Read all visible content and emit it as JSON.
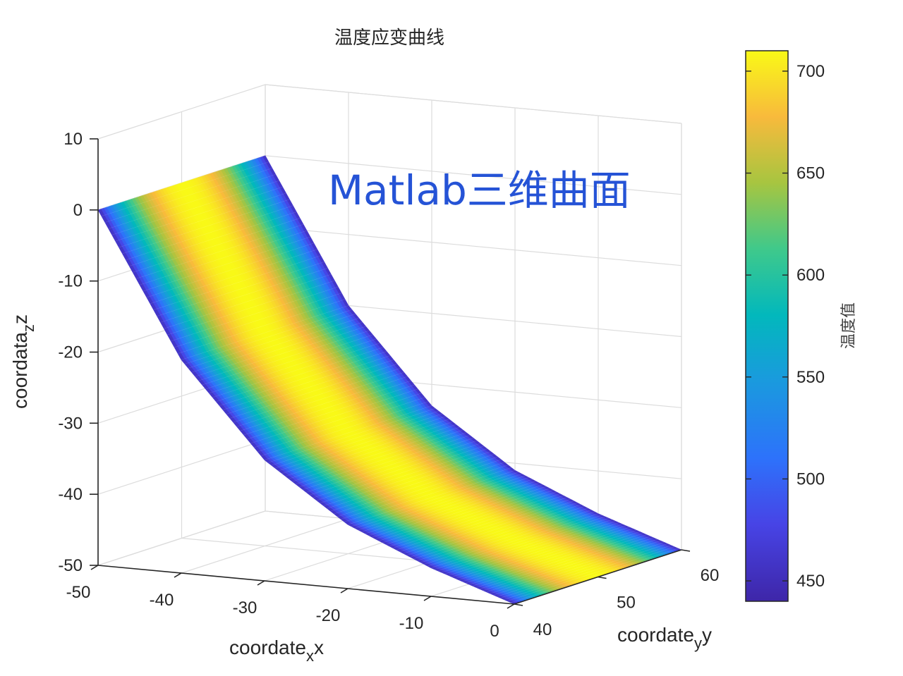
{
  "chart_data": {
    "type": "surface3d",
    "title": "温度应变曲线",
    "watermark": "Matlab三维曲面",
    "axes": {
      "x": {
        "label_base": "coordate",
        "label_sub": "x",
        "label_tail": "x",
        "range": [
          -50,
          0
        ],
        "ticks": [
          "-50",
          "-40",
          "-30",
          "-20",
          "-10",
          "0"
        ]
      },
      "y": {
        "label_base": "coordate",
        "label_sub": "y",
        "label_tail": "y",
        "range": [
          40,
          60
        ],
        "ticks": [
          "40",
          "50",
          "60"
        ]
      },
      "z": {
        "label_base": "coordata",
        "label_sub": "z",
        "label_tail": "z",
        "range": [
          -50,
          10
        ],
        "ticks": [
          "10",
          "0",
          "-10",
          "-20",
          "-30",
          "-40",
          "-50"
        ]
      }
    },
    "grid": true,
    "surface": {
      "description_axes": "x from -50 to 0, y from 40 to 60, z = curved trough",
      "x_range": [
        -50,
        0
      ],
      "y_range": [
        40,
        60
      ],
      "z_at_x": [
        [
          -50,
          0
        ],
        [
          -40,
          -20
        ],
        [
          -30,
          -33
        ],
        [
          -20,
          -41
        ],
        [
          -10,
          -46
        ],
        [
          0,
          -50
        ]
      ],
      "color_value_min_edges": 440,
      "color_value_max_center": 710,
      "colormap": "parula"
    },
    "colorbar": {
      "label": "温度值",
      "range": [
        440,
        710
      ],
      "ticks": [
        "700",
        "650",
        "600",
        "550",
        "500",
        "450"
      ],
      "tick_values": [
        700,
        650,
        600,
        550,
        500,
        450
      ],
      "placement": "right"
    }
  }
}
